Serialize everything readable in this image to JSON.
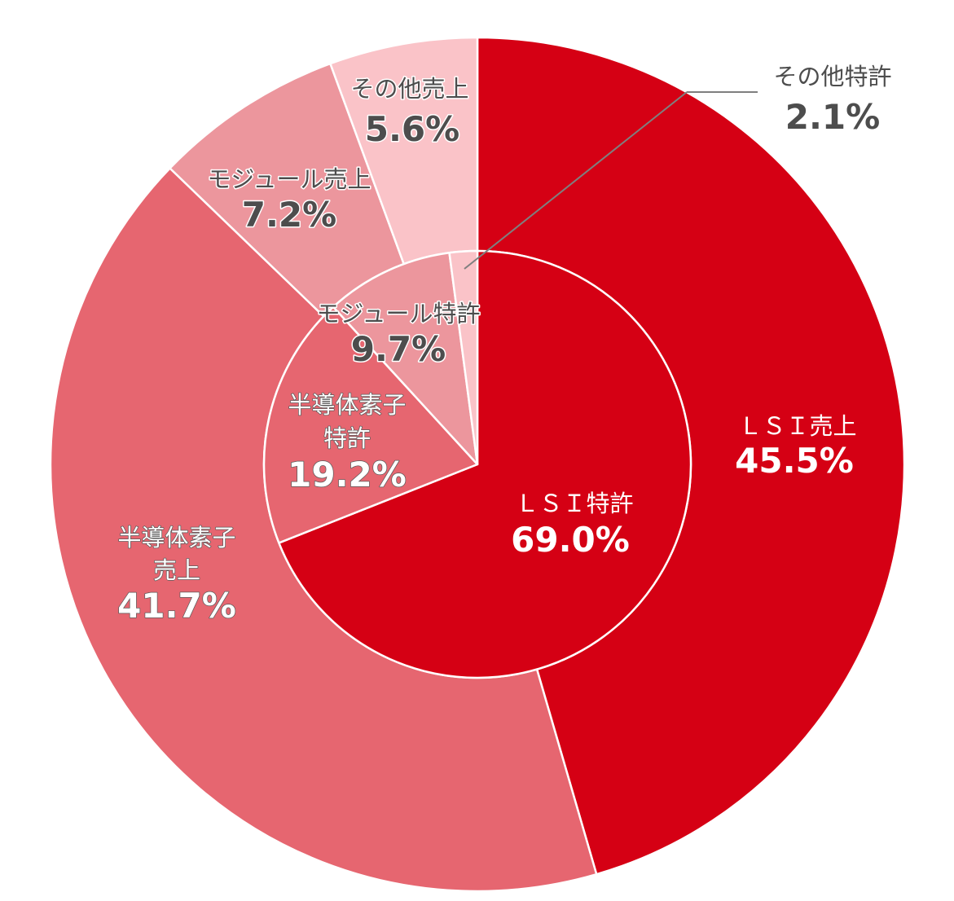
{
  "chart_data": {
    "type": "donut",
    "outer_ring": [
      {
        "label": "ＬＳＩ売上",
        "value": 45.5,
        "display": "45.5%",
        "color": "#D50014"
      },
      {
        "label": "半導体素子売上",
        "value": 41.7,
        "display": "41.7%",
        "color": "#E66670"
      },
      {
        "label": "モジュール売上",
        "value": 7.2,
        "display": "7.2%",
        "color": "#EC969D"
      },
      {
        "label": "その他売上",
        "value": 5.6,
        "display": "5.6%",
        "color": "#FAC3C8"
      }
    ],
    "inner_ring": [
      {
        "label": "ＬＳＩ特許",
        "value": 69.0,
        "display": "69.0%",
        "color": "#D50014"
      },
      {
        "label": "半導体素子特許",
        "value": 19.2,
        "display": "19.2%",
        "color": "#E66670"
      },
      {
        "label": "モジュール特許",
        "value": 9.7,
        "display": "9.7%",
        "color": "#EC969D"
      },
      {
        "label": "その他特許",
        "value": 2.1,
        "display": "2.1%",
        "color": "#FAC3C8"
      }
    ],
    "labels": {
      "outer_lsi_name": "ＬＳＩ売上",
      "outer_lsi_val": "45.5%",
      "outer_semi_name1": "半導体素子",
      "outer_semi_name2": "売上",
      "outer_semi_val": "41.7%",
      "outer_module_name": "モジュール売上",
      "outer_module_val": "7.2%",
      "outer_other_name": "その他売上",
      "outer_other_val": "5.6%",
      "inner_lsi_name": "ＬＳＩ特許",
      "inner_lsi_val": "69.0%",
      "inner_semi_name1": "半導体素子",
      "inner_semi_name2": "特許",
      "inner_semi_val": "19.2%",
      "inner_module_name": "モジュール特許",
      "inner_module_val": "9.7%",
      "inner_other_name": "その他特許",
      "inner_other_val": "2.1%"
    },
    "start_angle": "12 o'clock",
    "direction": "clockwise"
  }
}
